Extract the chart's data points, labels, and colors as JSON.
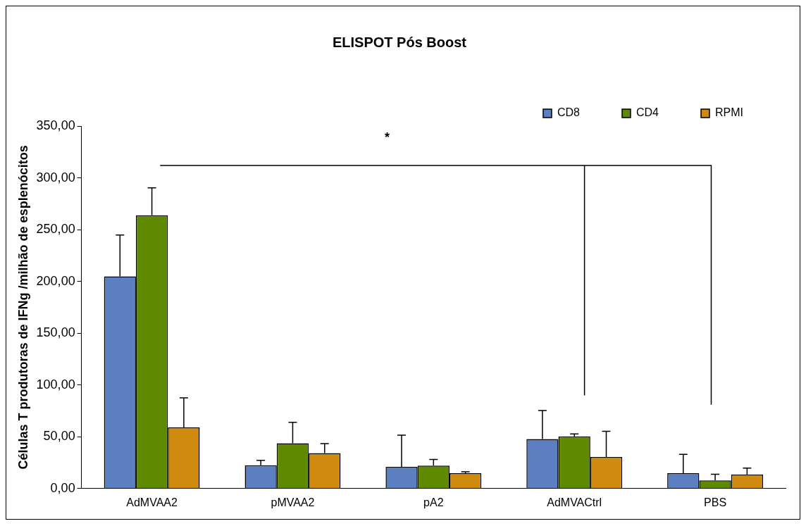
{
  "chart_data": {
    "type": "bar",
    "title": "ELISPOT Pós Boost",
    "ylabel": "Células T produtoras de IFNg /milhão de esplenócitos",
    "categories": [
      "AdMVAA2",
      "pMVAA2",
      "pA2",
      "AdMVACtrl",
      "PBS"
    ],
    "series": [
      {
        "name": "CD8",
        "color": "#5b7fc0",
        "values": [
          204.8,
          22.4,
          21,
          47.8,
          14.9
        ],
        "errors": [
          [
            204.8,
            244.8
          ],
          [
            22.4,
            27.3
          ],
          [
            21,
            51.5
          ],
          [
            47.8,
            75.4
          ],
          [
            14.9,
            33
          ]
        ]
      },
      {
        "name": "CD4",
        "color": "#5f8a00",
        "values": [
          263.8,
          43.8,
          22.2,
          50.4,
          7.9
        ],
        "errors": [
          [
            263.8,
            290.4
          ],
          [
            43.8,
            64
          ],
          [
            22.2,
            28.1
          ],
          [
            50.4,
            52.7
          ],
          [
            7.9,
            13.8
          ]
        ]
      },
      {
        "name": "RPMI",
        "color": "#d08a10",
        "values": [
          59,
          34.2,
          14.9,
          30.4,
          13.5
        ],
        "errors": [
          [
            59,
            87.5
          ],
          [
            34.2,
            43.3
          ],
          [
            14.9,
            16.1
          ],
          [
            30.4,
            55.3
          ],
          [
            13.5,
            19.7
          ]
        ]
      }
    ],
    "ylim": [
      0,
      350
    ],
    "yticks": [
      {
        "value": 0,
        "label": "0,00"
      },
      {
        "value": 50,
        "label": "50,00"
      },
      {
        "value": 100,
        "label": "100,00"
      },
      {
        "value": 150,
        "label": "150,00"
      },
      {
        "value": 200,
        "label": "200,00"
      },
      {
        "value": 250,
        "label": "250,00"
      },
      {
        "value": 300,
        "label": "300,00"
      },
      {
        "value": 350,
        "label": "350,00"
      }
    ],
    "grid": false,
    "legend": "top right",
    "annotations": [
      "*"
    ]
  }
}
